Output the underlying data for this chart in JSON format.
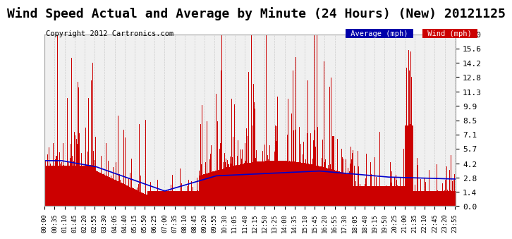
{
  "title": "Wind Speed Actual and Average by Minute (24 Hours) (New) 20121125",
  "copyright": "Copyright 2012 Cartronics.com",
  "yticks": [
    0.0,
    1.4,
    2.8,
    4.2,
    5.7,
    7.1,
    8.5,
    9.9,
    11.3,
    12.8,
    14.2,
    15.6,
    17.0
  ],
  "ylim": [
    0.0,
    17.0
  ],
  "legend_avg_label": "Average (mph)",
  "legend_wind_label": "Wind (mph)",
  "avg_color": "#0000cc",
  "wind_color": "#cc0000",
  "bg_color": "#f0f0f0",
  "grid_color": "#cccccc",
  "title_fontsize": 13,
  "copyright_fontsize": 7.5,
  "xtick_step": 35
}
